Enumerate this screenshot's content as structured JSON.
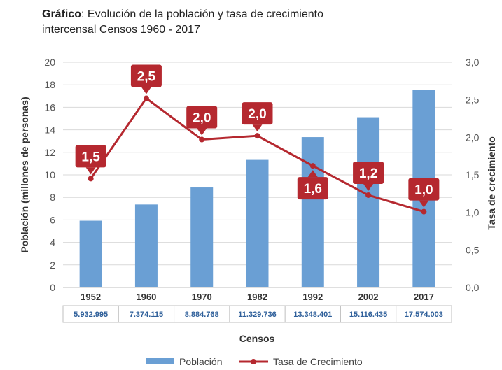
{
  "title": {
    "bold": "Gráfico",
    "rest": ": Evolución de la población y tasa de crecimiento",
    "line2": "intercensal Censos 1960 - 2017"
  },
  "chart_data": {
    "type": "bar",
    "categories": [
      "1952",
      "1960",
      "1970",
      "1982",
      "1992",
      "2002",
      "2017"
    ],
    "series": [
      {
        "name": "Población",
        "type": "bar",
        "axis": "left",
        "values": [
          5.93,
          7.37,
          8.88,
          11.33,
          13.35,
          15.12,
          17.57
        ]
      },
      {
        "name": "Tasa de Crecimiento",
        "type": "line",
        "axis": "right",
        "values": [
          1.45,
          2.52,
          1.97,
          2.02,
          1.62,
          1.23,
          1.01
        ],
        "labels": [
          "1,5",
          "2,5",
          "2,0",
          "2,0",
          "1,6",
          "1,2",
          "1,0"
        ]
      }
    ],
    "table_values": [
      "5.932.995",
      "7.374.115",
      "8.884.768",
      "11.329.736",
      "13.348.401",
      "15.116.435",
      "17.574.003"
    ],
    "xlabel": "Censos",
    "ylabel": "Población (millones de personas)",
    "y2label": "Tasa de crecimiento",
    "ylim": [
      0,
      20
    ],
    "y2lim": [
      0,
      3
    ],
    "yticks": [
      "0",
      "2",
      "4",
      "6",
      "8",
      "10",
      "12",
      "14",
      "16",
      "18",
      "20"
    ],
    "y2ticks": [
      "0,0",
      "0,5",
      "1,0",
      "1,5",
      "2,0",
      "2,5",
      "3,0"
    ],
    "grid": true,
    "legend": "bottom",
    "colors": {
      "bar": "#6a9fd4",
      "line": "#b5282f",
      "label_bg": "#b5282f"
    }
  }
}
